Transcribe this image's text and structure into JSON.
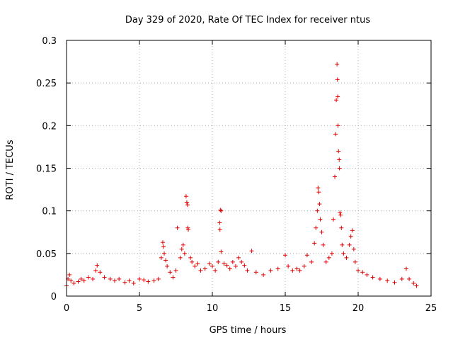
{
  "chart_data": {
    "type": "scatter",
    "title": "Day 329 of 2020, Rate Of TEC Index for receiver ntus",
    "xlabel": "GPS time / hours",
    "ylabel": "ROTI / TECUs",
    "xlim": [
      0,
      25
    ],
    "ylim": [
      0,
      0.3
    ],
    "xticks": [
      0,
      5,
      10,
      15,
      20,
      25
    ],
    "yticks": [
      0,
      0.05,
      0.1,
      0.15,
      0.2,
      0.25,
      0.3
    ],
    "xtick_labels": [
      "0",
      "5",
      "10",
      "15",
      "20",
      "25"
    ],
    "ytick_labels": [
      "0",
      "0.05",
      "0.1",
      "0.15",
      "0.2",
      "0.25",
      "0.3"
    ],
    "grid": true,
    "marker": "+",
    "color": "#e00000",
    "series": [
      {
        "name": "ROTI",
        "points": [
          [
            0.0,
            0.012
          ],
          [
            0.1,
            0.02
          ],
          [
            0.2,
            0.025
          ],
          [
            0.3,
            0.018
          ],
          [
            0.5,
            0.015
          ],
          [
            0.8,
            0.017
          ],
          [
            1.0,
            0.02
          ],
          [
            1.2,
            0.018
          ],
          [
            1.5,
            0.022
          ],
          [
            1.8,
            0.02
          ],
          [
            2.0,
            0.03
          ],
          [
            2.1,
            0.036
          ],
          [
            2.3,
            0.028
          ],
          [
            2.6,
            0.022
          ],
          [
            3.0,
            0.02
          ],
          [
            3.3,
            0.018
          ],
          [
            3.6,
            0.02
          ],
          [
            4.0,
            0.016
          ],
          [
            4.3,
            0.018
          ],
          [
            4.6,
            0.015
          ],
          [
            5.0,
            0.02
          ],
          [
            5.3,
            0.019
          ],
          [
            5.6,
            0.017
          ],
          [
            6.0,
            0.018
          ],
          [
            6.3,
            0.02
          ],
          [
            6.5,
            0.045
          ],
          [
            6.6,
            0.063
          ],
          [
            6.65,
            0.058
          ],
          [
            6.7,
            0.05
          ],
          [
            6.8,
            0.042
          ],
          [
            6.9,
            0.035
          ],
          [
            7.1,
            0.028
          ],
          [
            7.3,
            0.022
          ],
          [
            7.5,
            0.03
          ],
          [
            7.6,
            0.08
          ],
          [
            7.8,
            0.045
          ],
          [
            7.9,
            0.055
          ],
          [
            8.0,
            0.06
          ],
          [
            8.1,
            0.05
          ],
          [
            8.2,
            0.117
          ],
          [
            8.25,
            0.11
          ],
          [
            8.3,
            0.107
          ],
          [
            8.32,
            0.08
          ],
          [
            8.35,
            0.078
          ],
          [
            8.5,
            0.045
          ],
          [
            8.6,
            0.04
          ],
          [
            8.8,
            0.035
          ],
          [
            9.0,
            0.038
          ],
          [
            9.2,
            0.03
          ],
          [
            9.5,
            0.032
          ],
          [
            9.8,
            0.038
          ],
          [
            10.0,
            0.035
          ],
          [
            10.2,
            0.03
          ],
          [
            10.4,
            0.04
          ],
          [
            10.5,
            0.086
          ],
          [
            10.55,
            0.101
          ],
          [
            10.6,
            0.1
          ],
          [
            10.52,
            0.078
          ],
          [
            10.6,
            0.052
          ],
          [
            10.8,
            0.038
          ],
          [
            11.0,
            0.036
          ],
          [
            11.2,
            0.032
          ],
          [
            11.4,
            0.04
          ],
          [
            11.6,
            0.035
          ],
          [
            11.8,
            0.045
          ],
          [
            12.0,
            0.04
          ],
          [
            12.2,
            0.036
          ],
          [
            12.4,
            0.03
          ],
          [
            12.7,
            0.053
          ],
          [
            13.0,
            0.028
          ],
          [
            13.5,
            0.025
          ],
          [
            14.0,
            0.03
          ],
          [
            14.5,
            0.032
          ],
          [
            15.0,
            0.048
          ],
          [
            15.2,
            0.035
          ],
          [
            15.5,
            0.03
          ],
          [
            15.8,
            0.032
          ],
          [
            16.0,
            0.03
          ],
          [
            16.3,
            0.035
          ],
          [
            16.5,
            0.048
          ],
          [
            16.8,
            0.04
          ],
          [
            17.0,
            0.062
          ],
          [
            17.1,
            0.08
          ],
          [
            17.2,
            0.1
          ],
          [
            17.25,
            0.127
          ],
          [
            17.3,
            0.122
          ],
          [
            17.35,
            0.108
          ],
          [
            17.4,
            0.09
          ],
          [
            17.5,
            0.075
          ],
          [
            17.6,
            0.06
          ],
          [
            17.8,
            0.04
          ],
          [
            18.0,
            0.045
          ],
          [
            18.2,
            0.05
          ],
          [
            18.3,
            0.09
          ],
          [
            18.4,
            0.14
          ],
          [
            18.45,
            0.19
          ],
          [
            18.5,
            0.23
          ],
          [
            18.55,
            0.272
          ],
          [
            18.58,
            0.254
          ],
          [
            18.6,
            0.234
          ],
          [
            18.62,
            0.2
          ],
          [
            18.65,
            0.17
          ],
          [
            18.7,
            0.16
          ],
          [
            18.72,
            0.15
          ],
          [
            18.75,
            0.098
          ],
          [
            18.8,
            0.095
          ],
          [
            18.85,
            0.08
          ],
          [
            18.9,
            0.06
          ],
          [
            19.0,
            0.05
          ],
          [
            19.2,
            0.045
          ],
          [
            19.4,
            0.06
          ],
          [
            19.5,
            0.07
          ],
          [
            19.6,
            0.077
          ],
          [
            19.7,
            0.055
          ],
          [
            19.8,
            0.04
          ],
          [
            20.0,
            0.03
          ],
          [
            20.3,
            0.028
          ],
          [
            20.6,
            0.025
          ],
          [
            21.0,
            0.022
          ],
          [
            21.5,
            0.02
          ],
          [
            22.0,
            0.018
          ],
          [
            22.5,
            0.016
          ],
          [
            23.0,
            0.02
          ],
          [
            23.3,
            0.032
          ],
          [
            23.5,
            0.02
          ],
          [
            23.8,
            0.015
          ],
          [
            24.0,
            0.012
          ]
        ]
      }
    ]
  }
}
